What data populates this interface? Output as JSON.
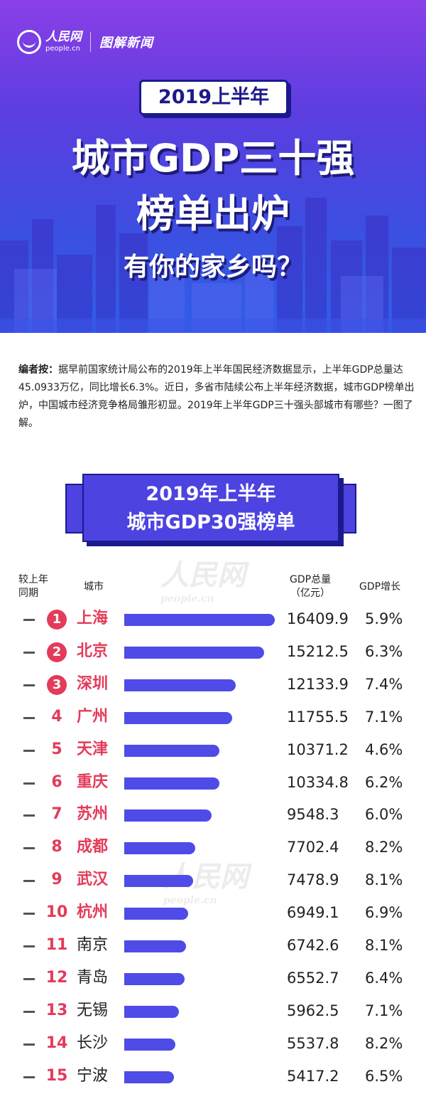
{
  "header": {
    "logo_cn": "人民网",
    "logo_en": "people.cn",
    "logo_news": "图解新闻",
    "year_label": "2019上半年",
    "title_line1": "城市GDP三十强",
    "title_line2": "榜单出炉",
    "title_line3": "有你的家乡吗？"
  },
  "intro": {
    "lead": "编者按：",
    "text": "据早前国家统计局公布的2019年上半年国民经济数据显示，上半年GDP总量达45.0933万亿，同比增长6.3%。近日，多省市陆续公布上半年经济数据，城市GDP榜单出炉，中国城市经济竞争格局雏形初显。2019年上半年GDP三十强头部城市有哪些？一图了解。"
  },
  "board": {
    "line1": "2019年上半年",
    "line2": "城市GDP30强榜单"
  },
  "columns": {
    "change_l1": "较上年",
    "change_l2": "同期",
    "city": "城市",
    "gdp_l1": "GDP总量",
    "gdp_l2": "（亿元）",
    "growth": "GDP增长"
  },
  "watermark": {
    "cn": "人民网",
    "en": "people.cn"
  },
  "chart_data": {
    "type": "bar",
    "title": "城市GDP30强榜单",
    "xlabel": "",
    "ylabel": "GDP总量（亿元）",
    "xlim": [
      0,
      16409.9
    ],
    "categories": [
      "上海",
      "北京",
      "深圳",
      "广州",
      "天津",
      "重庆",
      "苏州",
      "成都",
      "武汉",
      "杭州",
      "南京",
      "青岛",
      "无锡",
      "长沙",
      "宁波"
    ],
    "series": [
      {
        "name": "GDP总量（亿元）",
        "values": [
          16409.9,
          15212.5,
          12133.9,
          11755.5,
          10371.2,
          10334.8,
          9548.3,
          7702.4,
          7478.9,
          6949.1,
          6742.6,
          6552.7,
          5962.5,
          5537.8,
          5417.2
        ]
      },
      {
        "name": "GDP增长",
        "values": [
          "5.9%",
          "6.3%",
          "7.4%",
          "7.1%",
          "4.6%",
          "6.2%",
          "6.0%",
          "8.2%",
          "8.1%",
          "6.9%",
          "8.1%",
          "6.4%",
          "7.1%",
          "8.2%",
          "6.5%"
        ]
      }
    ],
    "rows": [
      {
        "rank": "1",
        "city": "上海",
        "gdp": "16409.9",
        "growth": "5.9%",
        "change": "—"
      },
      {
        "rank": "2",
        "city": "北京",
        "gdp": "15212.5",
        "growth": "6.3%",
        "change": "—"
      },
      {
        "rank": "3",
        "city": "深圳",
        "gdp": "12133.9",
        "growth": "7.4%",
        "change": "—"
      },
      {
        "rank": "4",
        "city": "广州",
        "gdp": "11755.5",
        "growth": "7.1%",
        "change": "—"
      },
      {
        "rank": "5",
        "city": "天津",
        "gdp": "10371.2",
        "growth": "4.6%",
        "change": "—"
      },
      {
        "rank": "6",
        "city": "重庆",
        "gdp": "10334.8",
        "growth": "6.2%",
        "change": "—"
      },
      {
        "rank": "7",
        "city": "苏州",
        "gdp": "9548.3",
        "growth": "6.0%",
        "change": "—"
      },
      {
        "rank": "8",
        "city": "成都",
        "gdp": "7702.4",
        "growth": "8.2%",
        "change": "—"
      },
      {
        "rank": "9",
        "city": "武汉",
        "gdp": "7478.9",
        "growth": "8.1%",
        "change": "—"
      },
      {
        "rank": "10",
        "city": "杭州",
        "gdp": "6949.1",
        "growth": "6.9%",
        "change": "—"
      },
      {
        "rank": "11",
        "city": "南京",
        "gdp": "6742.6",
        "growth": "8.1%",
        "change": "—"
      },
      {
        "rank": "12",
        "city": "青岛",
        "gdp": "6552.7",
        "growth": "6.4%",
        "change": "—"
      },
      {
        "rank": "13",
        "city": "无锡",
        "gdp": "5962.5",
        "growth": "7.1%",
        "change": "—"
      },
      {
        "rank": "14",
        "city": "长沙",
        "gdp": "5537.8",
        "growth": "8.2%",
        "change": "—"
      },
      {
        "rank": "15",
        "city": "宁波",
        "gdp": "5417.2",
        "growth": "6.5%",
        "change": "—"
      }
    ]
  }
}
